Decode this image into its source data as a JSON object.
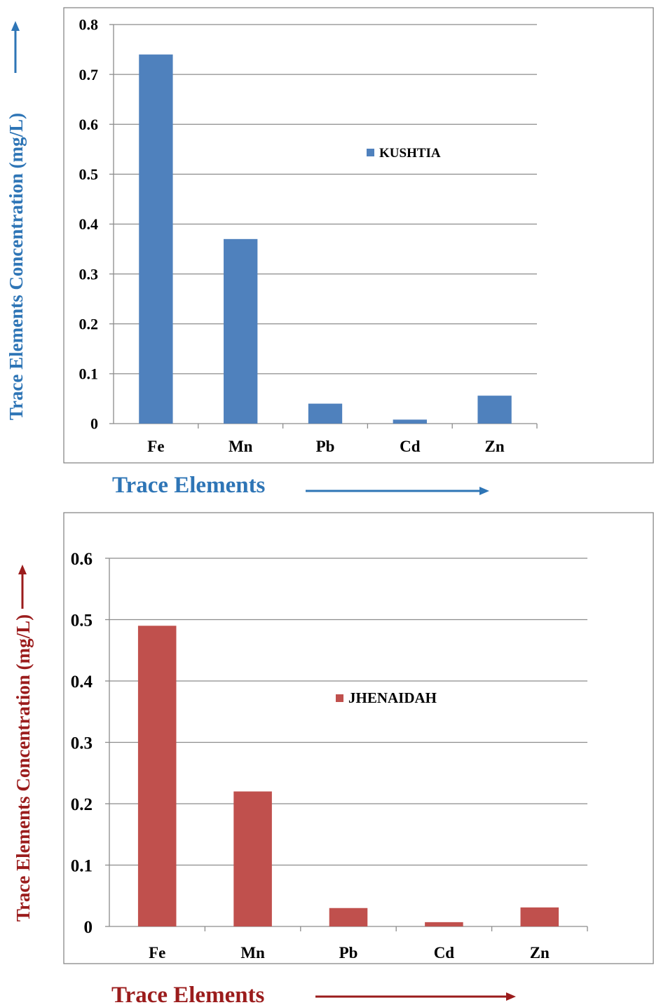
{
  "chart_data": [
    {
      "type": "bar",
      "categories": [
        "Fe",
        "Mn",
        "Pb",
        "Cd",
        "Zn"
      ],
      "series": [
        {
          "name": "KUSHTIA",
          "values": [
            0.74,
            0.37,
            0.04,
            0.008,
            0.056
          ],
          "color": "#4f81bd"
        }
      ],
      "ylim": [
        0,
        0.8
      ],
      "yticks": [
        "0",
        "0.1",
        "0.2",
        "0.3",
        "0.4",
        "0.5",
        "0.6",
        "0.7",
        "0.8"
      ],
      "xlabel": "Trace Elements",
      "ylabel": "Trace Elements Concentration (mg/L)",
      "axis_title_color": "#2e75b6",
      "grid": true,
      "legend_position": "center-right"
    },
    {
      "type": "bar",
      "categories": [
        "Fe",
        "Mn",
        "Pb",
        "Cd",
        "Zn"
      ],
      "series": [
        {
          "name": "JHENAIDAH",
          "values": [
            0.49,
            0.22,
            0.03,
            0.007,
            0.031
          ],
          "color": "#c0504d"
        }
      ],
      "ylim": [
        0,
        0.6
      ],
      "yticks": [
        "0",
        "0.1",
        "0.2",
        "0.3",
        "0.4",
        "0.5",
        "0.6"
      ],
      "xlabel": "Trace Elements",
      "ylabel": "Trace Elements Concentration (mg/L)",
      "axis_title_color": "#9b1c1c",
      "grid": true,
      "legend_position": "center-right"
    }
  ]
}
